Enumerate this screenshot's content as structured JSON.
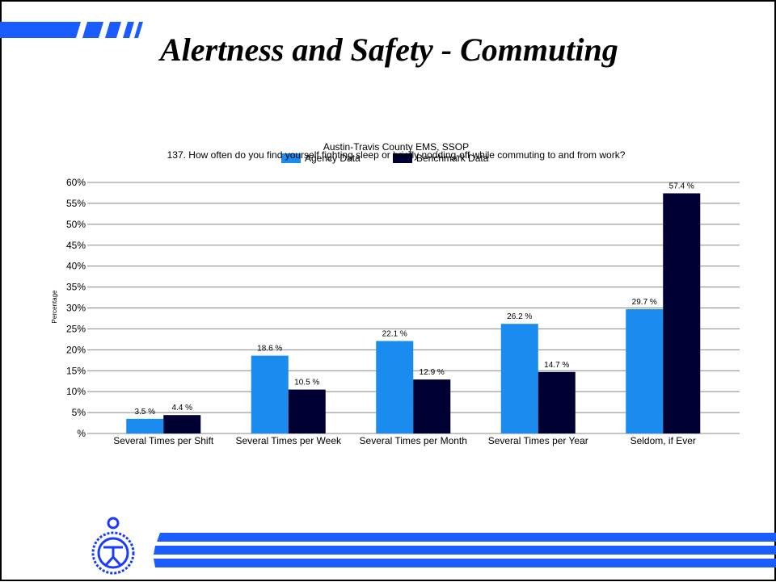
{
  "slide_title": "Alertness and Safety - Commuting",
  "chart_data": {
    "type": "bar",
    "title": "Austin-Travis County EMS,   SSOP",
    "subtitle": "137. How often do you find yourself fighting sleep or briefly nodding-off while commuting to and from work?",
    "y_label": "Percentage",
    "categories": [
      "Several Times per Shift",
      "Several Times per Week",
      "Several Times per Month",
      "Several Times per Year",
      "Seldom, if Ever"
    ],
    "series": [
      {
        "name": "Agency Data",
        "color": "#1a8cf0",
        "values": [
          3.5,
          18.6,
          22.1,
          26.2,
          29.7
        ],
        "value_labels": [
          "3.5 %",
          "18.6 %",
          "22.1 %",
          "26.2 %",
          "29.7 %"
        ]
      },
      {
        "name": "Benchmark Data",
        "color": "#000033",
        "values": [
          4.4,
          10.5,
          12.9,
          14.7,
          57.4
        ],
        "value_labels": [
          "4.4 %",
          "10.5 %",
          "12.9 %",
          "14.7 %",
          "57.4 %"
        ]
      }
    ],
    "ylim": [
      0,
      60
    ],
    "yticks": [
      {
        "value": 0,
        "label": "%"
      },
      {
        "value": 5,
        "label": "5%"
      },
      {
        "value": 10,
        "label": "10%"
      },
      {
        "value": 15,
        "label": "15%"
      },
      {
        "value": 20,
        "label": "20%"
      },
      {
        "value": 25,
        "label": "25%"
      },
      {
        "value": 30,
        "label": "30%"
      },
      {
        "value": 35,
        "label": "35%"
      },
      {
        "value": 40,
        "label": "40%"
      },
      {
        "value": 45,
        "label": "45%"
      },
      {
        "value": 50,
        "label": "50%"
      },
      {
        "value": 55,
        "label": "55%"
      },
      {
        "value": 60,
        "label": "60%"
      }
    ],
    "grid": true,
    "legend": "top"
  }
}
